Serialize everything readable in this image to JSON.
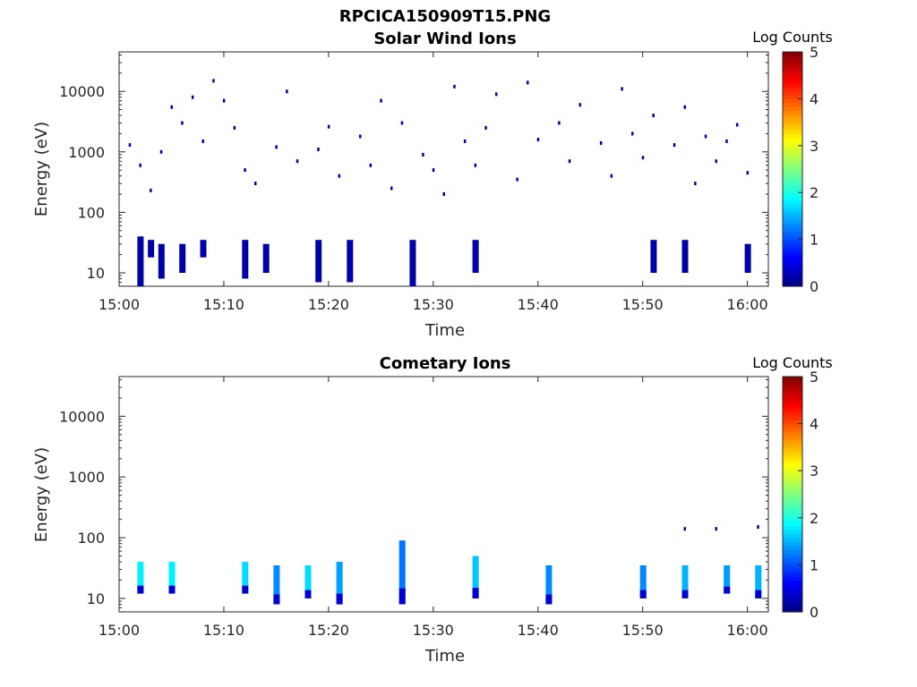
{
  "figure_title": "RPCICA150909T15.PNG",
  "chart_data": [
    {
      "type": "heatmap",
      "title": "Solar Wind Ions",
      "xlabel": "Time",
      "ylabel": "Energy (eV)",
      "x_scale": "time",
      "y_scale": "log",
      "xlim": [
        "15:00",
        "16:02"
      ],
      "ylim": [
        6,
        45000
      ],
      "xtick_labels": [
        "15:00",
        "15:10",
        "15:20",
        "15:30",
        "15:40",
        "15:50",
        "16:00"
      ],
      "ytick_labels": [
        "10",
        "100",
        "1000",
        "10000"
      ],
      "colorbar": {
        "label": "Log Counts",
        "range": [
          0,
          5
        ],
        "ticks": [
          "0",
          "1",
          "2",
          "3",
          "4",
          "5"
        ],
        "colormap": "jet"
      },
      "blocks": [
        {
          "t": 15.02,
          "e1": 6,
          "e2": 40,
          "v": 0.2
        },
        {
          "t": 15.03,
          "e1": 18,
          "e2": 35,
          "v": 0.2
        },
        {
          "t": 15.04,
          "e1": 8,
          "e2": 30,
          "v": 0.2
        },
        {
          "t": 15.06,
          "e1": 10,
          "e2": 30,
          "v": 0.2
        },
        {
          "t": 15.08,
          "e1": 18,
          "e2": 35,
          "v": 0.2
        },
        {
          "t": 15.12,
          "e1": 8,
          "e2": 35,
          "v": 0.2
        },
        {
          "t": 15.14,
          "e1": 10,
          "e2": 30,
          "v": 0.2
        },
        {
          "t": 15.19,
          "e1": 7,
          "e2": 35,
          "v": 0.2
        },
        {
          "t": 15.22,
          "e1": 7,
          "e2": 35,
          "v": 0.2
        },
        {
          "t": 15.28,
          "e1": 6,
          "e2": 35,
          "v": 0.2
        },
        {
          "t": 15.34,
          "e1": 10,
          "e2": 35,
          "v": 0.2
        },
        {
          "t": 15.51,
          "e1": 10,
          "e2": 35,
          "v": 0.2
        },
        {
          "t": 15.54,
          "e1": 10,
          "e2": 35,
          "v": 0.2
        },
        {
          "t": 15.6,
          "e1": 10,
          "e2": 30,
          "v": 0.2
        }
      ],
      "scatter": [
        {
          "t": 15.01,
          "e": 1300
        },
        {
          "t": 15.02,
          "e": 600
        },
        {
          "t": 15.03,
          "e": 230
        },
        {
          "t": 15.04,
          "e": 1000
        },
        {
          "t": 15.05,
          "e": 5500
        },
        {
          "t": 15.06,
          "e": 3000
        },
        {
          "t": 15.07,
          "e": 8000
        },
        {
          "t": 15.08,
          "e": 1500
        },
        {
          "t": 15.09,
          "e": 15000
        },
        {
          "t": 15.1,
          "e": 7000
        },
        {
          "t": 15.11,
          "e": 2500
        },
        {
          "t": 15.12,
          "e": 500
        },
        {
          "t": 15.13,
          "e": 300
        },
        {
          "t": 15.15,
          "e": 1200
        },
        {
          "t": 15.16,
          "e": 10000
        },
        {
          "t": 15.17,
          "e": 700
        },
        {
          "t": 15.19,
          "e": 1100
        },
        {
          "t": 15.2,
          "e": 2600
        },
        {
          "t": 15.21,
          "e": 400
        },
        {
          "t": 15.23,
          "e": 1800
        },
        {
          "t": 15.24,
          "e": 600
        },
        {
          "t": 15.25,
          "e": 7000
        },
        {
          "t": 15.26,
          "e": 250
        },
        {
          "t": 15.27,
          "e": 3000
        },
        {
          "t": 15.29,
          "e": 900
        },
        {
          "t": 15.3,
          "e": 500
        },
        {
          "t": 15.31,
          "e": 200
        },
        {
          "t": 15.32,
          "e": 12000
        },
        {
          "t": 15.33,
          "e": 1500
        },
        {
          "t": 15.34,
          "e": 600
        },
        {
          "t": 15.35,
          "e": 2500
        },
        {
          "t": 15.36,
          "e": 9000
        },
        {
          "t": 15.38,
          "e": 350
        },
        {
          "t": 15.39,
          "e": 14000
        },
        {
          "t": 15.4,
          "e": 1600
        },
        {
          "t": 15.42,
          "e": 3000
        },
        {
          "t": 15.43,
          "e": 700
        },
        {
          "t": 15.44,
          "e": 6000
        },
        {
          "t": 15.46,
          "e": 1400
        },
        {
          "t": 15.47,
          "e": 400
        },
        {
          "t": 15.48,
          "e": 11000
        },
        {
          "t": 15.49,
          "e": 2000
        },
        {
          "t": 15.5,
          "e": 800
        },
        {
          "t": 15.51,
          "e": 4000
        },
        {
          "t": 15.53,
          "e": 1300
        },
        {
          "t": 15.54,
          "e": 5500
        },
        {
          "t": 15.55,
          "e": 300
        },
        {
          "t": 15.56,
          "e": 1800
        },
        {
          "t": 15.57,
          "e": 700
        },
        {
          "t": 15.58,
          "e": 1500
        },
        {
          "t": 15.59,
          "e": 2800
        },
        {
          "t": 15.6,
          "e": 450
        }
      ]
    },
    {
      "type": "heatmap",
      "title": "Cometary Ions",
      "xlabel": "Time",
      "ylabel": "Energy (eV)",
      "x_scale": "time",
      "y_scale": "log",
      "xlim": [
        "15:00",
        "16:02"
      ],
      "ylim": [
        6,
        45000
      ],
      "xtick_labels": [
        "15:00",
        "15:10",
        "15:20",
        "15:30",
        "15:40",
        "15:50",
        "16:00"
      ],
      "ytick_labels": [
        "10",
        "100",
        "1000",
        "10000"
      ],
      "colorbar": {
        "label": "Log Counts",
        "range": [
          0,
          5
        ],
        "ticks": [
          "0",
          "1",
          "2",
          "3",
          "4",
          "5"
        ],
        "colormap": "jet"
      },
      "blocks": [
        {
          "t": 15.02,
          "e1": 12,
          "e2": 40,
          "v": 1.8
        },
        {
          "t": 15.05,
          "e1": 12,
          "e2": 40,
          "v": 1.8
        },
        {
          "t": 15.12,
          "e1": 12,
          "e2": 40,
          "v": 1.7
        },
        {
          "t": 15.15,
          "e1": 8,
          "e2": 35,
          "v": 1.3
        },
        {
          "t": 15.18,
          "e1": 10,
          "e2": 35,
          "v": 1.7
        },
        {
          "t": 15.21,
          "e1": 8,
          "e2": 40,
          "v": 1.4
        },
        {
          "t": 15.27,
          "e1": 8,
          "e2": 90,
          "v": 1.2
        },
        {
          "t": 15.34,
          "e1": 10,
          "e2": 50,
          "v": 1.6
        },
        {
          "t": 15.41,
          "e1": 8,
          "e2": 35,
          "v": 1.3
        },
        {
          "t": 15.5,
          "e1": 10,
          "e2": 35,
          "v": 1.3
        },
        {
          "t": 15.54,
          "e1": 10,
          "e2": 35,
          "v": 1.5
        },
        {
          "t": 15.58,
          "e1": 12,
          "e2": 35,
          "v": 1.4
        },
        {
          "t": 16.01,
          "e1": 10,
          "e2": 35,
          "v": 1.5
        }
      ],
      "scatter": [
        {
          "t": 15.54,
          "e": 140
        },
        {
          "t": 15.57,
          "e": 140
        },
        {
          "t": 16.01,
          "e": 150
        }
      ]
    }
  ]
}
